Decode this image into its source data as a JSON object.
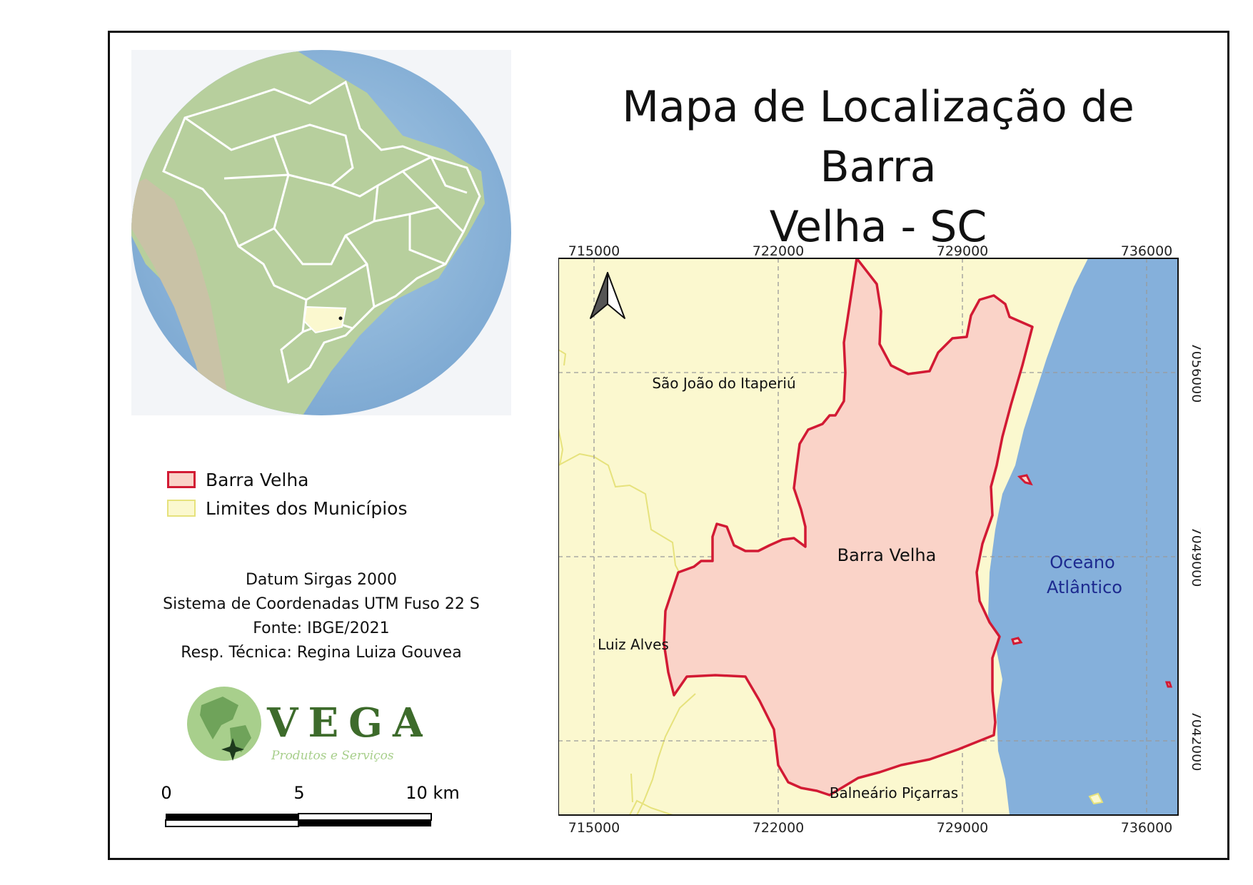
{
  "title_line1": "Mapa de Localização de Barra",
  "title_line2": "Velha - SC",
  "legend": {
    "items": [
      {
        "label": "Barra Velha",
        "fill": "#fad3c8",
        "stroke": "#d21a34"
      },
      {
        "label": "Limites dos Municípios",
        "fill": "#fbf8cf",
        "stroke": "#e6e27c"
      }
    ]
  },
  "info": {
    "datum": "Datum Sirgas 2000",
    "system": "Sistema de Coordenadas UTM Fuso 22 S",
    "source": "Fonte: IBGE/2021",
    "resp": "Resp. Técnica: Regina Luiza Gouvea"
  },
  "logo": {
    "name": "VEGA",
    "tagline": "Produtos e Serviços"
  },
  "scalebar": {
    "ticks": [
      "0",
      "5",
      "10 km"
    ]
  },
  "map": {
    "x_ticks": [
      "715000",
      "722000",
      "729000",
      "736000"
    ],
    "y_ticks": [
      "7056000",
      "7049000",
      "7042000"
    ],
    "labels": {
      "sao_joao": "São João do Itaperiú",
      "barra_velha": "Barra Velha",
      "luiz_alves": "Luiz Alves",
      "picarras": "Balneário Piçarras",
      "oceano1": "Oceano",
      "oceano2": "Atlântico"
    },
    "colors": {
      "land": "#fbf8cf",
      "ocean": "#85b0db",
      "bv_fill": "#fad3c8",
      "bv_stroke": "#d21a34",
      "mun_line": "#e6e27c",
      "ocean_text": "#1d2a8f"
    }
  }
}
